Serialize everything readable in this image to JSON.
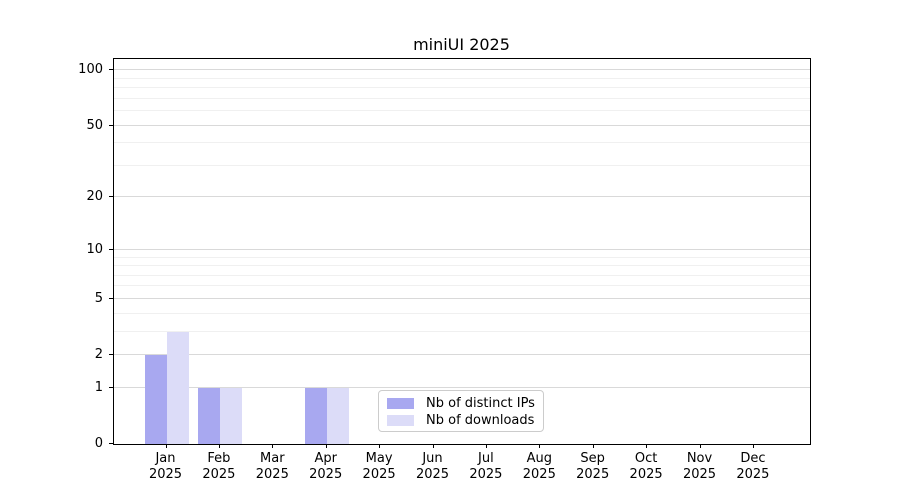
{
  "chart_data": {
    "type": "bar",
    "title": "miniUI 2025",
    "categories": [
      "Jan",
      "Feb",
      "Mar",
      "Apr",
      "May",
      "Jun",
      "Jul",
      "Aug",
      "Sep",
      "Oct",
      "Nov",
      "Dec"
    ],
    "category_year": "2025",
    "series": [
      {
        "name": "Nb of distinct IPs",
        "color": "#a8a8f0",
        "values": [
          2,
          1,
          0,
          1,
          0,
          0,
          0,
          0,
          0,
          0,
          0,
          0
        ]
      },
      {
        "name": "Nb of downloads",
        "color": "#dcdcf8",
        "values": [
          3,
          1,
          0,
          1,
          0,
          0,
          0,
          0,
          0,
          0,
          0,
          0
        ]
      }
    ],
    "yscale": "log1p",
    "ylim": [
      0,
      115
    ],
    "yticks": [
      0,
      1,
      2,
      5,
      10,
      20,
      50,
      100
    ],
    "yticks_minor": [
      3,
      4,
      6,
      7,
      8,
      9,
      30,
      40,
      60,
      70,
      80,
      90
    ],
    "grid": true,
    "legend_position": "lower center-right inside plot",
    "colors": {
      "grid_major": "#d9d9d9",
      "grid_minor": "#f0f0f0",
      "axis": "#000000",
      "legend_border": "#cccccc"
    }
  }
}
